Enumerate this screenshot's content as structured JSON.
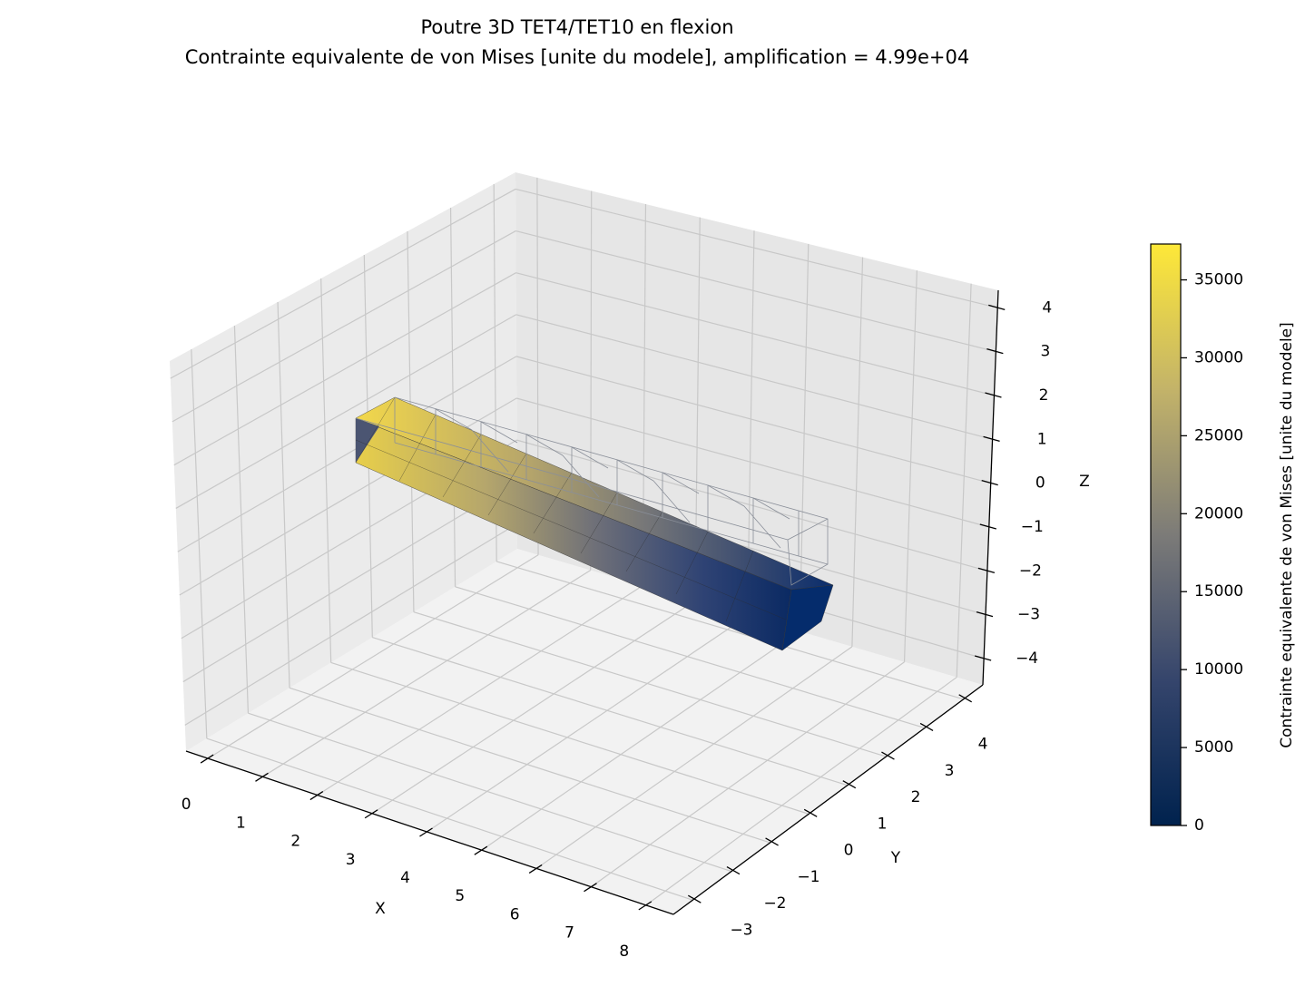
{
  "chart_data": {
    "type": "mesh3d",
    "title": "Poutre 3D TET4/TET10 en flexion",
    "subtitle": "Contrainte equivalente de von Mises [unite du modele], amplification = 4.99e+04",
    "xlabel": "X",
    "ylabel": "Y",
    "zlabel": "Z",
    "xlim": [
      -0.4,
      8.5
    ],
    "ylim": [
      -3.5,
      4.5
    ],
    "zlim": [
      -4.6,
      4.4
    ],
    "xticks": [
      0,
      1,
      2,
      3,
      4,
      5,
      6,
      7,
      8
    ],
    "yticks": [
      {
        "value": -3,
        "label": "−3"
      },
      {
        "value": -2,
        "label": "−2"
      },
      {
        "value": -1,
        "label": "−1"
      },
      0,
      1,
      2,
      3,
      4
    ],
    "zticks": [
      {
        "value": -4,
        "label": "−4"
      },
      {
        "value": -3,
        "label": "−3"
      },
      {
        "value": -2,
        "label": "−2"
      },
      {
        "value": -1,
        "label": "−1"
      },
      0,
      1,
      2,
      3,
      4
    ],
    "grid": true,
    "colorbar": {
      "label": "Contrainte equivalente de von Mises [unite du modele]",
      "colormap": [
        "#00224e",
        "#35456c",
        "#7c7b78",
        "#c3b369",
        "#fee838"
      ],
      "lim": [
        0,
        37300
      ],
      "ticks": [
        0,
        5000,
        10000,
        15000,
        20000,
        25000,
        30000,
        35000
      ]
    }
  }
}
